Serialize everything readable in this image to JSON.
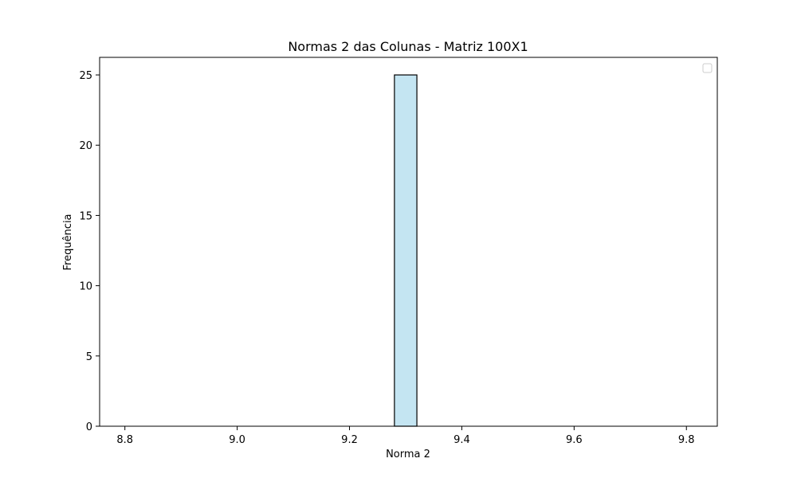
{
  "chart_data": {
    "type": "bar",
    "title": "Normas 2 das Colunas - Matriz 100X1",
    "xlabel": "Norma 2",
    "ylabel": "Frequência",
    "xlim": [
      8.755,
      9.855
    ],
    "ylim": [
      0,
      26.25
    ],
    "x_ticks": [
      8.8,
      9.0,
      9.2,
      9.4,
      9.6,
      9.8
    ],
    "x_tick_labels": [
      "8.8",
      "9.0",
      "9.2",
      "9.4",
      "9.6",
      "9.8"
    ],
    "y_ticks": [
      0,
      5,
      10,
      15,
      20,
      25
    ],
    "y_tick_labels": [
      "0",
      "5",
      "10",
      "15",
      "20",
      "25"
    ],
    "bins": [
      {
        "x_start": 9.28,
        "x_end": 9.32,
        "value": 25
      }
    ],
    "baseline_range": [
      8.8,
      9.8
    ],
    "bar_color": "#c4e5f2",
    "edge_color": "#000000",
    "grid": false,
    "legend": {
      "placement": "top-right",
      "entries": []
    }
  }
}
